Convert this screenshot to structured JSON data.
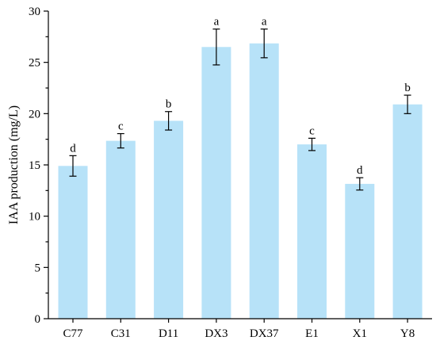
{
  "chart_data": {
    "type": "bar",
    "categories": [
      "C77",
      "C31",
      "D11",
      "DX3",
      "DX37",
      "E1",
      "X1",
      "Y8"
    ],
    "values": [
      14.9,
      17.35,
      19.3,
      26.5,
      26.85,
      17.0,
      13.15,
      20.9
    ],
    "errors": [
      1.0,
      0.7,
      0.9,
      1.75,
      1.4,
      0.6,
      0.6,
      0.9
    ],
    "significance": [
      "d",
      "c",
      "b",
      "a",
      "a",
      "c",
      "d",
      "b"
    ],
    "title": "",
    "xlabel": "",
    "ylabel": "IAA production (mg/L)",
    "ylim": [
      0,
      30
    ],
    "yticks": [
      "0",
      "5",
      "10",
      "15",
      "20",
      "25",
      "30"
    ],
    "grid": false,
    "bar_color": "#b7e2f8",
    "error_color": "#000000"
  }
}
